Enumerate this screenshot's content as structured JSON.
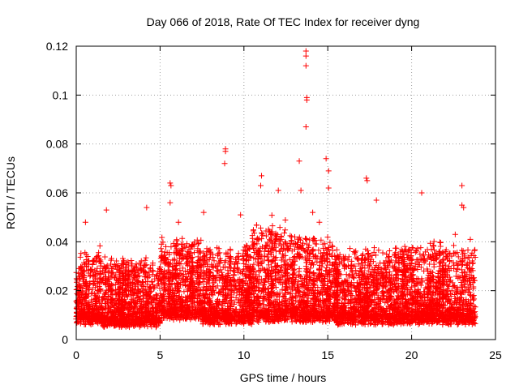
{
  "chart_data": {
    "type": "scatter",
    "title": "Day 066 of 2018, Rate Of TEC Index for receiver dyng",
    "xlabel": "GPS time / hours",
    "ylabel": "ROTI / TECUs",
    "xlim": [
      0,
      25
    ],
    "ylim": [
      0,
      0.12
    ],
    "xticks": [
      0,
      5,
      10,
      15,
      20,
      25
    ],
    "xtick_labels": [
      "0",
      "5",
      "10",
      "15",
      "20",
      "25"
    ],
    "yticks": [
      0,
      0.02,
      0.04,
      0.06,
      0.08,
      0.1,
      0.12
    ],
    "ytick_labels": [
      "0",
      "0.02",
      "0.04",
      "0.06",
      "0.08",
      "0.1",
      "0.12"
    ],
    "grid": true,
    "marker": "+",
    "color": "#ff0000",
    "series": [
      {
        "name": "ROTI",
        "notable_points": [
          {
            "x": 13.7,
            "y": 0.118
          },
          {
            "x": 13.7,
            "y": 0.116
          },
          {
            "x": 13.7,
            "y": 0.112
          },
          {
            "x": 13.75,
            "y": 0.099
          },
          {
            "x": 13.75,
            "y": 0.098
          },
          {
            "x": 13.7,
            "y": 0.087
          },
          {
            "x": 8.9,
            "y": 0.078
          },
          {
            "x": 8.9,
            "y": 0.077
          },
          {
            "x": 8.85,
            "y": 0.072
          },
          {
            "x": 14.9,
            "y": 0.074
          },
          {
            "x": 13.3,
            "y": 0.073
          },
          {
            "x": 15.05,
            "y": 0.069
          },
          {
            "x": 17.3,
            "y": 0.066
          },
          {
            "x": 17.35,
            "y": 0.065
          },
          {
            "x": 11.05,
            "y": 0.067
          },
          {
            "x": 11.0,
            "y": 0.063
          },
          {
            "x": 5.6,
            "y": 0.064
          },
          {
            "x": 5.65,
            "y": 0.063
          },
          {
            "x": 23.0,
            "y": 0.063
          },
          {
            "x": 20.6,
            "y": 0.06
          },
          {
            "x": 15.05,
            "y": 0.062
          },
          {
            "x": 12.05,
            "y": 0.061
          },
          {
            "x": 13.4,
            "y": 0.061
          },
          {
            "x": 17.9,
            "y": 0.057
          },
          {
            "x": 5.6,
            "y": 0.056
          },
          {
            "x": 4.2,
            "y": 0.054
          },
          {
            "x": 23.0,
            "y": 0.055
          },
          {
            "x": 23.1,
            "y": 0.054
          },
          {
            "x": 14.1,
            "y": 0.052
          },
          {
            "x": 7.6,
            "y": 0.052
          },
          {
            "x": 1.8,
            "y": 0.053
          },
          {
            "x": 0.55,
            "y": 0.048
          },
          {
            "x": 6.1,
            "y": 0.048
          },
          {
            "x": 9.8,
            "y": 0.051
          },
          {
            "x": 14.5,
            "y": 0.048
          },
          {
            "x": 22.6,
            "y": 0.043
          },
          {
            "x": 23.5,
            "y": 0.041
          }
        ],
        "bulk": [
          {
            "x_start": 0,
            "x_end": 1.5,
            "typical_max": 0.035,
            "baseline": 0.008
          },
          {
            "x_start": 1.5,
            "x_end": 5.0,
            "typical_max": 0.032,
            "baseline": 0.007
          },
          {
            "x_start": 5.0,
            "x_end": 7.5,
            "typical_max": 0.04,
            "baseline": 0.01
          },
          {
            "x_start": 7.5,
            "x_end": 10.5,
            "typical_max": 0.036,
            "baseline": 0.008
          },
          {
            "x_start": 10.5,
            "x_end": 12.5,
            "typical_max": 0.045,
            "baseline": 0.009
          },
          {
            "x_start": 12.5,
            "x_end": 15.5,
            "typical_max": 0.042,
            "baseline": 0.009
          },
          {
            "x_start": 15.5,
            "x_end": 19.0,
            "typical_max": 0.036,
            "baseline": 0.008
          },
          {
            "x_start": 19.0,
            "x_end": 23.8,
            "typical_max": 0.037,
            "baseline": 0.008
          }
        ]
      }
    ]
  }
}
